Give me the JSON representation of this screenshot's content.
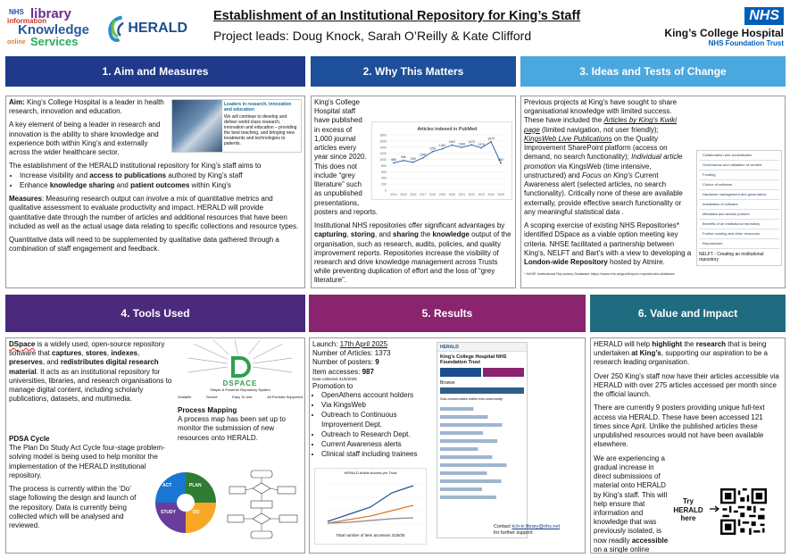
{
  "header": {
    "title": "Establishment of an Institutional Repository for King’s Staff",
    "leads": "Project leads: Doug Knock, Sarah O’Reilly & Kate Clifford",
    "logo_ks_1": "NHS",
    "logo_ks_2": "library",
    "logo_ks_3": "information",
    "logo_ks_4": "Knowledge",
    "logo_ks_5": "online",
    "logo_ks_6": "Services",
    "herald_logo": "HERALD",
    "nhs_badge": "NHS",
    "org_name": "King’s College Hospital",
    "org_sub": "NHS Foundation Trust"
  },
  "colors": {
    "s1": "#1f3a8a",
    "s2": "#1d4f9a",
    "s3": "#4aa8de",
    "s4": "#4b2a7d",
    "s5": "#8a246e",
    "s6": "#1f6b80"
  },
  "s1": {
    "title": "1. Aim and Measures",
    "aim_label": "Aim:",
    "aim_text": "King’s College Hospital is a leader in health research, innovation and education.",
    "aim_text2": "A key element of being a leader in research and innovation is the ability to share knowledge and experience both within King’s and externally across the wider healthcare sector.",
    "img_title": "Leaders in research, innovation and education",
    "img_text": "We will continue to develop and deliver world-class research, innovation and education – providing the best teaching, and bringing new treatments and technologies to patients.",
    "est_text": "The establishment of the HERALD institutional repository for King’s staff aims to",
    "b1_pre": "Increase visibility and ",
    "b1_bold": "access to publications",
    "b1_post": " authored by King’s staff",
    "b2_pre": "Enhance ",
    "b2_bold1": "knowledge sharing",
    "b2_mid": " and ",
    "b2_bold2": "patient outcomes",
    "b2_post": " within King’s",
    "measures_label": "Measures",
    "measures_text": ": Measuring research output can involve a mix of quantitative metrics and qualitative assessment to evaluate productivity and impact. HERALD will provide quantitative date through the number of articles and additional resources that have been included as well as the actual usage data relating to specific collections and resource types.",
    "quant_text": "Quantitative data will need to be supplemented by qualitative data gathered through a combination of staff engagement and feedback."
  },
  "s2": {
    "title": "2. Why This Matters",
    "p1": "King’s College Hospital staff have published in excess of 1,000 journal articles every year since 2020. This does not include “grey literature” such as unpublished presentations, posters and reports.",
    "p2a": "Institutional NHS repositories offer significant advantages by ",
    "p2b": "capturing",
    "p2c": ", ",
    "p2d": "storing",
    "p2e": ", and ",
    "p2f": "sharing",
    "p2g": " the ",
    "p2h": "knowledge",
    "p2i": " output of the organisation, such as research, audits, policies, and quality improvement reports. Repositories increase the visibility of research and drive knowledge management across Trusts while preventing duplication of effort and the loss of “grey literature”."
  },
  "chart_data": {
    "type": "line",
    "title": "Articles indexed in PubMed",
    "categories": [
      "2014",
      "2015",
      "2016",
      "2017",
      "2018",
      "2019",
      "2020",
      "2021",
      "2022",
      "2023",
      "2024",
      "2025"
    ],
    "series": [
      {
        "values": [
          886,
          966,
          909,
          1049,
          1252,
          1344,
          1467,
          1389,
          1473,
          1376,
          1574,
          882
        ]
      }
    ],
    "data_labels": [
      "886",
      "966",
      "909",
      "1049",
      "1252",
      "1344",
      "1467",
      "1389",
      "1473",
      "1376",
      "1574",
      "882"
    ],
    "yticks": [
      "1800",
      "1600",
      "1400",
      "1200",
      "1000",
      "800",
      "600",
      "400",
      "200",
      "0"
    ],
    "ylim": [
      0,
      1800
    ],
    "grid": true
  },
  "s3": {
    "title": "3. Ideas and Tests of Change",
    "p1a": "Previous projects at King’s have sought to share organisational knowledge with limited success. These have included the ",
    "p1b": "Articles by King’s Kwiki page",
    "p1c": " (limited navigation, not user friendly); ",
    "p1d": "KingsWeb Live Publications",
    "p1e": " on the Quality Improvement SharePoint platform (access on demand, no search functionality); ",
    "p1f": "Individual article promotion",
    "p1g": " via KingsWeb (time intensive, unstructured) and ",
    "p1h": "Focus on King’s",
    "p1i": " Current Awareness alert (selected articles, no search functionality). Critically none of these are available externally, provide effective search functionality or any meaningful statistical data .",
    "p2a": "A scoping exercise of existing NHS Repositories* identified DSpace as a viable option meeting key criteria. NHSE facilitated a partnership between King’s, NELFT and Bart’s with a view to developing a ",
    "p2b": "London-wide Repository",
    "p2c": " hosted by Atmire.",
    "footnote": "* NHSE Institutional Repository Database https://www.nhs.uk/guide/open-repositories-database",
    "img_caption": "NELFT - Creating an institutional repository",
    "repo_items": [
      "Collaboration and accreditation",
      "Governance and validation of content",
      "Funding",
      "Choice of software",
      "Hardware management and governance",
      "Installation of software",
      "Metadata and access policies",
      "Benefits of an institutional repository",
      "Further reading and other resources",
      "Repositories"
    ]
  },
  "s4": {
    "title": "4. Tools Used",
    "p1a": "DSpace",
    "p1b": " is a widely used, open-source repository software that ",
    "p1c": "captures",
    "p1d": ", ",
    "p1e": "stores",
    "p1f": ", ",
    "p1g": "indexes",
    "p1h": ", ",
    "p1i": "preserves",
    "p1j": ", and ",
    "p1k": "redistributes digital research material",
    "p1l": ". It acts as an institutional repository for universities, libraries, and research organisations to manage digital content, including scholarly publications, datasets, and multimedia.",
    "dspace_logo": "DSPACE",
    "dspace_tag": "Simple & Powerful Repository System",
    "dspace_terms": [
      "Thesis",
      "Articles",
      "Audio",
      "Data Sets",
      "Images",
      "Preprints",
      "Multimedia",
      "Videos",
      "Workshop Papers",
      "Conference Papers",
      "Books",
      "Technical Reports"
    ],
    "dspace_feats": [
      "Scalable",
      "Secure",
      "Easy To Use",
      "All Formats Supported"
    ],
    "pm_title": "Process Mapping",
    "pm_text": "A process map has been set up to monitor the submission of new resources onto HERALD.",
    "pdsa_title": "PDSA Cycle",
    "pdsa_text": "The Plan Do Study Act Cycle four-stage problem-solving model is being used to help monitor the implementation of the HERALD institutional repository.",
    "pdsa_text2": "The process is currently within the ‘Do’ stage following the design and launch of the repository. Data is currently being collected which will be analysed and reviewed.",
    "pdsa_labels": [
      "PLAN",
      "DO",
      "STUDY",
      "ACT"
    ]
  },
  "s5": {
    "title": "5. Results",
    "launch_label": "Launch: ",
    "launch_date": "17th April 2025",
    "articles": "Number of Articles: 1373",
    "posters_pre": "Number of posters: ",
    "posters_val": "9",
    "access_pre": "Item accesses: ",
    "access_val": "987",
    "collected": "Data collected 31/5/2025",
    "promo": "Promotion to",
    "promo_items": [
      "OpenAthens account holders",
      "Via KingsWeb",
      "Outreach to Continuous Improvement Dept.",
      "Outreach to Research Dept.",
      "Current Awareness alerts",
      "Clinical staff including trainees"
    ],
    "small_chart_title": "HERALD Article Access per Trust",
    "small_chart_caption": "Total number of item accesses 31/5/25",
    "contact_pre": "Contact ",
    "contact_email": "kch-tr.library@nhs.net",
    "contact_post": " for further support",
    "shot_org": "King’s College Hospital NHS Foundation Trust",
    "shot_browse": "Browse",
    "shot_subtitle": "Sub-communities within this community"
  },
  "s6": {
    "title": "6. Value and Impact",
    "p1a": "HERALD will help ",
    "p1b": "highlight",
    "p1c": " the ",
    "p1d": "research",
    "p1e": " that is being undertaken ",
    "p1f": "at King’s",
    "p1g": ", supporting our aspiration to be a research leading organisation.",
    "p2": "Over 250 King’s staff now have their articles accessible via HERALD with over 275 articles accessed per month since the official launch.",
    "p3": "There are currently 9 posters providing unique full-text access via HERALD. These have been accessed 121 times since April. Unlike the published articles these unpublished resources would not have been available elsewhere.",
    "p4a": "We are experiencing a gradual increase in direct submissions of material onto HERALD by King’s staff. This will help ensure that information and knowledge that was previously isolated, is now readily ",
    "p4b": "accessible",
    "p4c": " on a single online platform.",
    "try_label": "Try HERALD here"
  }
}
